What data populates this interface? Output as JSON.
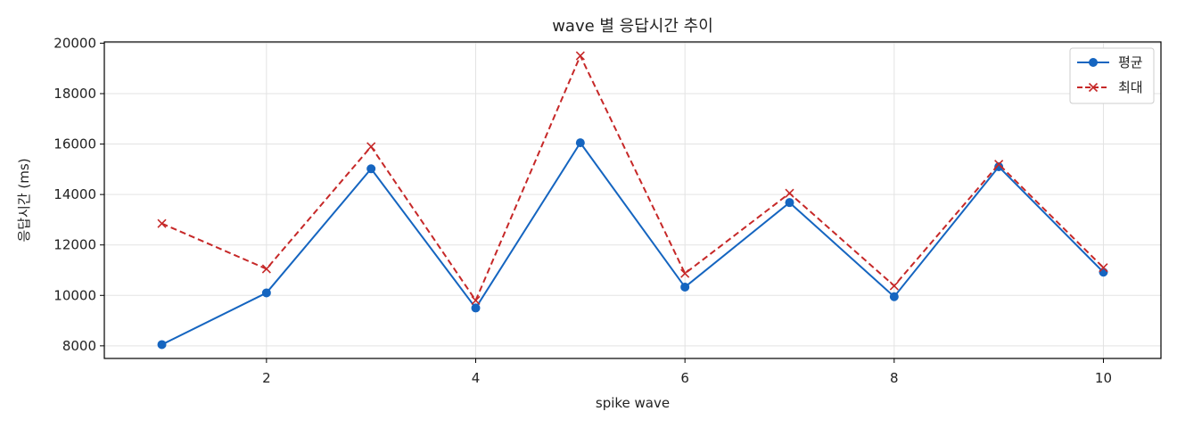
{
  "chart_data": {
    "type": "line",
    "title": "wave 별 응답시간 추이",
    "xlabel": "spike wave",
    "ylabel": "응답시간 (ms)",
    "x": [
      1,
      2,
      3,
      4,
      5,
      6,
      7,
      8,
      9,
      10
    ],
    "xlim": [
      0.45,
      10.55
    ],
    "ylim": [
      7500,
      20050
    ],
    "xticks": [
      2,
      4,
      6,
      8,
      10
    ],
    "yticks": [
      8000,
      10000,
      12000,
      14000,
      16000,
      18000,
      20000
    ],
    "grid": true,
    "legend_position": "top-right",
    "series": [
      {
        "name": "평균",
        "values": [
          8050,
          10100,
          15020,
          9500,
          16050,
          10330,
          13680,
          9950,
          15100,
          10920
        ],
        "color": "#1565c0",
        "line_style": "solid",
        "marker": "circle"
      },
      {
        "name": "최대",
        "values": [
          12850,
          11050,
          15900,
          9800,
          19500,
          10870,
          14050,
          10380,
          15200,
          11100
        ],
        "color": "#c62828",
        "line_style": "dashed",
        "marker": "x"
      }
    ]
  }
}
